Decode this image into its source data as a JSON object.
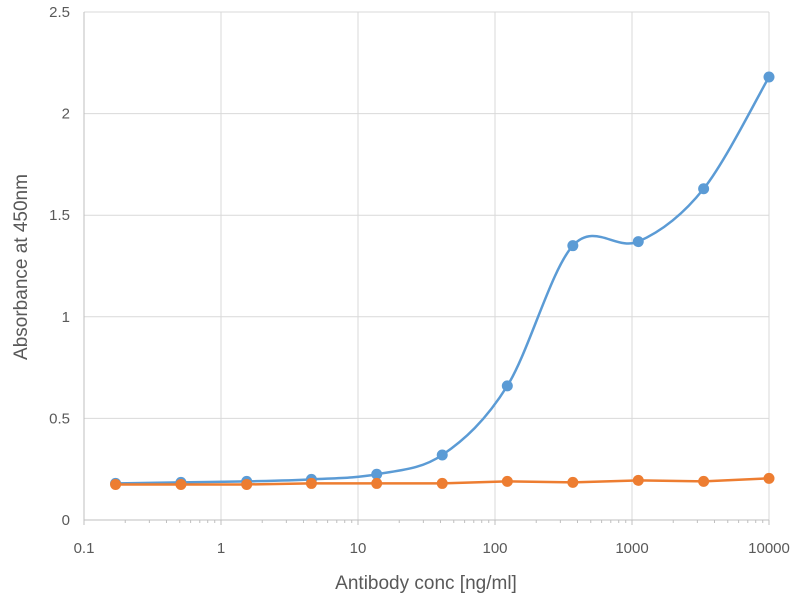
{
  "chart_data": {
    "type": "line",
    "title": "",
    "xlabel": "Antibody conc [ng/ml]",
    "ylabel": "Absorbance at 450nm",
    "x_scale": "log",
    "xlim": [
      0.1,
      10000
    ],
    "ylim": [
      0,
      2.5
    ],
    "x_ticks": [
      0.1,
      1,
      10,
      100,
      1000,
      10000
    ],
    "x_tick_labels": [
      "0.1",
      "1",
      "10",
      "100",
      "1000",
      "10000"
    ],
    "y_ticks": [
      0,
      0.5,
      1,
      1.5,
      2,
      2.5
    ],
    "y_tick_labels": [
      "0",
      "0.5",
      "1",
      "1.5",
      "2",
      "2.5"
    ],
    "grid": true,
    "legend": "none",
    "series": [
      {
        "color": "#5b9bd5",
        "smooth": true,
        "x": [
          0.17,
          0.51,
          1.54,
          4.57,
          13.7,
          41.2,
          123,
          370,
          1111,
          3333,
          10000
        ],
        "y": [
          0.18,
          0.185,
          0.19,
          0.2,
          0.225,
          0.32,
          0.66,
          1.35,
          1.37,
          1.63,
          2.18
        ]
      },
      {
        "color": "#ed7d31",
        "smooth": false,
        "x": [
          0.17,
          0.51,
          1.54,
          4.57,
          13.7,
          41.2,
          123,
          370,
          1111,
          3333,
          10000
        ],
        "y": [
          0.175,
          0.175,
          0.175,
          0.18,
          0.18,
          0.18,
          0.19,
          0.185,
          0.195,
          0.19,
          0.205
        ]
      }
    ]
  }
}
